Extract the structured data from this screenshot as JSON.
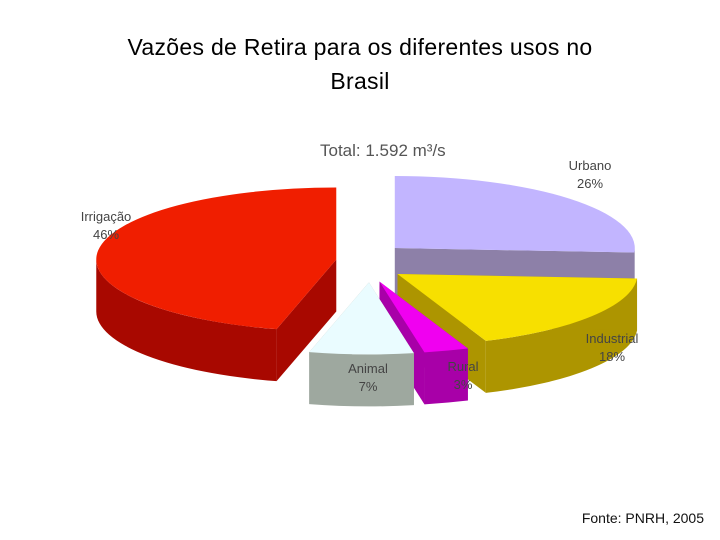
{
  "slide": {
    "title_line1": "Vazões de Retira para os diferentes usos  no",
    "title_line2": "Brasil",
    "source": "Fonte: PNRH, 2005"
  },
  "chart_data": {
    "type": "pie",
    "style": "3d-exploded",
    "title": "Total: 1.592 m³/s",
    "total_value": "1.592",
    "total_unit": "m³/s",
    "slices": [
      {
        "name": "Urbano",
        "value": 26,
        "label": "26%",
        "top_color": "#c2b5ff",
        "side_color": "#8d80a8"
      },
      {
        "name": "Industrial",
        "value": 18,
        "label": "18%",
        "top_color": "#f7e000",
        "side_color": "#ad9500"
      },
      {
        "name": "Rural",
        "value": 3,
        "label": "3%",
        "top_color": "#f000f0",
        "side_color": "#a800a8"
      },
      {
        "name": "Animal",
        "value": 7,
        "label": "7%",
        "top_color": "#eafcff",
        "side_color": "#9ea89f"
      },
      {
        "name": "Irrigação",
        "value": 46,
        "label": "46%",
        "top_color": "#f01e00",
        "side_color": "#a80800"
      }
    ]
  }
}
